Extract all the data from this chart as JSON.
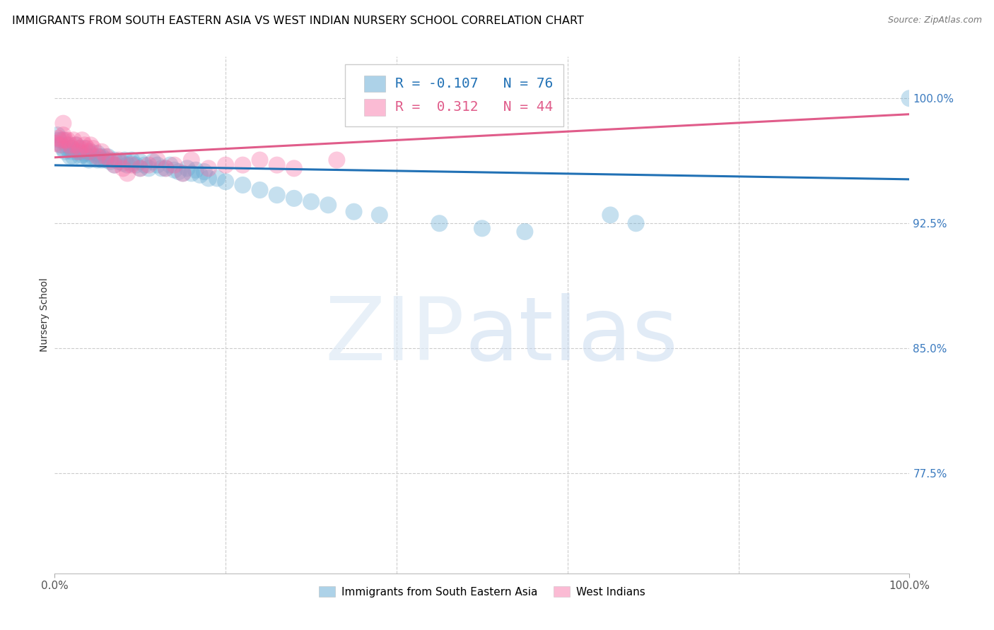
{
  "title": "IMMIGRANTS FROM SOUTH EASTERN ASIA VS WEST INDIAN NURSERY SCHOOL CORRELATION CHART",
  "source": "Source: ZipAtlas.com",
  "ylabel": "Nursery School",
  "ytick_labels": [
    "100.0%",
    "92.5%",
    "85.0%",
    "77.5%"
  ],
  "ytick_values": [
    1.0,
    0.925,
    0.85,
    0.775
  ],
  "y_min": 0.715,
  "y_max": 1.025,
  "x_min": 0.0,
  "x_max": 1.0,
  "blue_R": -0.107,
  "blue_N": 76,
  "pink_R": 0.312,
  "pink_N": 44,
  "blue_color": "#6baed6",
  "pink_color": "#f768a1",
  "blue_line_color": "#2171b5",
  "pink_line_color": "#e05c8a",
  "legend_label_blue": "Immigrants from South Eastern Asia",
  "legend_label_pink": "West Indians",
  "blue_scatter_x": [
    0.003,
    0.005,
    0.008,
    0.01,
    0.01,
    0.012,
    0.015,
    0.015,
    0.018,
    0.02,
    0.02,
    0.022,
    0.025,
    0.025,
    0.028,
    0.03,
    0.03,
    0.032,
    0.035,
    0.035,
    0.038,
    0.04,
    0.04,
    0.042,
    0.045,
    0.05,
    0.05,
    0.052,
    0.055,
    0.055,
    0.06,
    0.062,
    0.065,
    0.07,
    0.07,
    0.075,
    0.08,
    0.082,
    0.085,
    0.09,
    0.09,
    0.095,
    0.1,
    0.1,
    0.105,
    0.11,
    0.115,
    0.12,
    0.125,
    0.13,
    0.135,
    0.14,
    0.145,
    0.15,
    0.155,
    0.16,
    0.165,
    0.17,
    0.175,
    0.18,
    0.19,
    0.2,
    0.22,
    0.24,
    0.26,
    0.28,
    0.3,
    0.32,
    0.35,
    0.38,
    0.45,
    0.5,
    0.55,
    0.65,
    0.68,
    1.0
  ],
  "blue_scatter_y": [
    0.978,
    0.975,
    0.972,
    0.97,
    0.975,
    0.968,
    0.97,
    0.972,
    0.965,
    0.97,
    0.968,
    0.965,
    0.968,
    0.972,
    0.97,
    0.965,
    0.968,
    0.966,
    0.967,
    0.97,
    0.965,
    0.967,
    0.963,
    0.968,
    0.965,
    0.963,
    0.967,
    0.965,
    0.965,
    0.963,
    0.963,
    0.965,
    0.962,
    0.96,
    0.963,
    0.962,
    0.961,
    0.963,
    0.96,
    0.961,
    0.963,
    0.96,
    0.958,
    0.962,
    0.96,
    0.958,
    0.962,
    0.96,
    0.958,
    0.958,
    0.96,
    0.957,
    0.956,
    0.955,
    0.958,
    0.955,
    0.957,
    0.954,
    0.956,
    0.952,
    0.952,
    0.95,
    0.948,
    0.945,
    0.942,
    0.94,
    0.938,
    0.936,
    0.932,
    0.93,
    0.925,
    0.922,
    0.92,
    0.93,
    0.925,
    1.0
  ],
  "pink_scatter_x": [
    0.002,
    0.004,
    0.006,
    0.008,
    0.01,
    0.01,
    0.012,
    0.015,
    0.018,
    0.02,
    0.022,
    0.025,
    0.028,
    0.03,
    0.032,
    0.035,
    0.038,
    0.04,
    0.042,
    0.045,
    0.05,
    0.055,
    0.06,
    0.065,
    0.07,
    0.075,
    0.08,
    0.085,
    0.09,
    0.1,
    0.11,
    0.12,
    0.13,
    0.14,
    0.15,
    0.16,
    0.18,
    0.2,
    0.22,
    0.24,
    0.26,
    0.28,
    0.33,
    0.38
  ],
  "pink_scatter_y": [
    0.973,
    0.976,
    0.972,
    0.975,
    0.978,
    0.985,
    0.975,
    0.975,
    0.972,
    0.97,
    0.975,
    0.972,
    0.968,
    0.97,
    0.975,
    0.972,
    0.97,
    0.968,
    0.972,
    0.97,
    0.965,
    0.968,
    0.965,
    0.963,
    0.96,
    0.963,
    0.958,
    0.955,
    0.96,
    0.958,
    0.96,
    0.963,
    0.958,
    0.96,
    0.955,
    0.963,
    0.958,
    0.96,
    0.96,
    0.963,
    0.96,
    0.958,
    0.963,
    0.988
  ]
}
